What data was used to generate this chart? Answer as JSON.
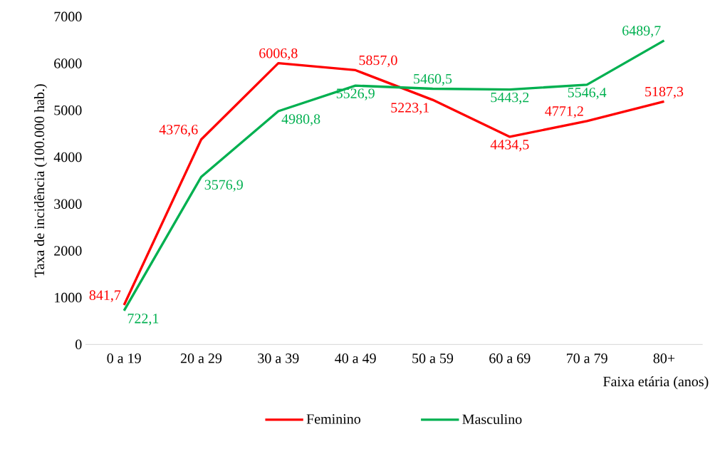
{
  "chart_data": {
    "type": "line",
    "ylabel": "Taxa de incidência (100.000 hab.)",
    "xlabel": "Faixa etária (anos)",
    "categories": [
      "0 a 19",
      "20 a 29",
      "30 a 39",
      "40 a 49",
      "50 a 59",
      "60 a 69",
      "70 a 79",
      "80+"
    ],
    "series": [
      {
        "name": "Feminino",
        "color": "#ff0000",
        "values": [
          841.7,
          4376.6,
          6006.8,
          5857.0,
          5223.1,
          4434.5,
          4771.2,
          5187.3
        ],
        "value_labels": [
          "841,7",
          "4376,6",
          "6006,8",
          "5857,0",
          "5223,1",
          "4434,5",
          "4771,2",
          "5187,3"
        ]
      },
      {
        "name": "Masculino",
        "color": "#00b050",
        "values": [
          722.1,
          3576.9,
          4980.8,
          5526.9,
          5460.5,
          5443.2,
          5546.4,
          6489.7
        ],
        "value_labels": [
          "722,1",
          "3576,9",
          "4980,8",
          "5526,9",
          "5460,5",
          "5443,2",
          "5546,4",
          "6489,7"
        ]
      }
    ],
    "ylim": [
      0,
      7000
    ],
    "yticks": [
      0,
      1000,
      2000,
      3000,
      4000,
      5000,
      6000,
      7000
    ],
    "grid": false,
    "legend": "bottom"
  }
}
